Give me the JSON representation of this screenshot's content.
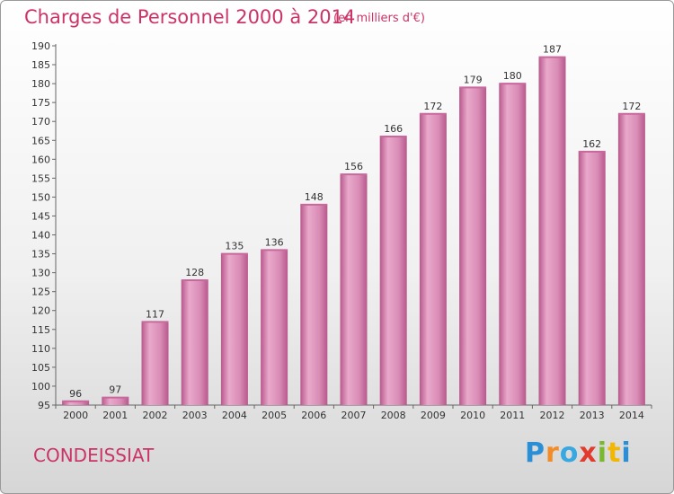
{
  "title": "Charges de Personnel 2000 à 2014",
  "unit_note": "(en milliers d'€)",
  "commune": "CONDEISSIAT",
  "logo": {
    "letters": [
      "P",
      "r",
      "o",
      "x",
      "i",
      "t",
      "i"
    ],
    "colors": [
      "#2b8fd6",
      "#f28c28",
      "#3aa8e0",
      "#e23b2e",
      "#7ab82f",
      "#f2b705",
      "#2b8fd6"
    ]
  },
  "colors": {
    "title": "#cc3366",
    "bar": "#d67fae",
    "bar_light": "#e9a9cb",
    "bar_dark": "#b8588c"
  },
  "chart_data": {
    "type": "bar",
    "title": "Charges de Personnel 2000 à 2014",
    "categories": [
      "2000",
      "2001",
      "2002",
      "2003",
      "2004",
      "2005",
      "2006",
      "2007",
      "2008",
      "2009",
      "2010",
      "2011",
      "2012",
      "2013",
      "2014"
    ],
    "values": [
      96,
      97,
      117,
      128,
      135,
      136,
      148,
      156,
      166,
      172,
      179,
      180,
      187,
      162,
      172
    ],
    "data_labels": [
      "96",
      "97",
      "117",
      "128",
      "135",
      "136",
      "148",
      "156",
      "166",
      "172",
      "179",
      "180",
      "187",
      "162",
      "172"
    ],
    "ylim": [
      95,
      190
    ],
    "yticks": [
      "95",
      "100",
      "105",
      "110",
      "115",
      "120",
      "125",
      "130",
      "135",
      "140",
      "145",
      "150",
      "155",
      "160",
      "165",
      "170",
      "175",
      "180",
      "185",
      "190"
    ],
    "grid": false
  }
}
